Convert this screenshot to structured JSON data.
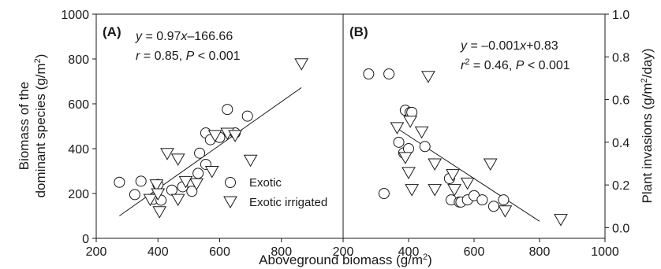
{
  "chart_data": [
    {
      "type": "scatter",
      "panel_label": "(A)",
      "ylabel_line1": "Biomass of the",
      "ylabel_line2": "dominant species (g/m",
      "ylabel_sup": "2",
      "ylabel_close": ")",
      "xlim": [
        200,
        1000
      ],
      "ylim": [
        0,
        1000
      ],
      "x_ticks": [
        200,
        400,
        600,
        800
      ],
      "y_ticks": [
        0,
        200,
        400,
        600,
        800,
        1000
      ],
      "annotation": {
        "eq_y": "y",
        "eq_rest": " = 0.97",
        "eq_x": "x",
        "eq_tail": "–166.66",
        "stat_r": "r",
        "stat_rest": " = 0.85,  ",
        "stat_p": "P",
        "stat_tail": " < 0.001"
      },
      "regression": {
        "slope": 0.97,
        "intercept": -166.66,
        "x_range": [
          275,
          865
        ]
      },
      "legend": {
        "exotic": "Exotic",
        "exotic_irrigated": "Exotic irrigated"
      },
      "series": [
        {
          "name": "Exotic",
          "marker": "circle",
          "points": [
            [
              275,
              250
            ],
            [
              325,
              195
            ],
            [
              345,
              255
            ],
            [
              385,
              175
            ],
            [
              400,
              240
            ],
            [
              410,
              170
            ],
            [
              445,
              215
            ],
            [
              480,
              230
            ],
            [
              510,
              210
            ],
            [
              530,
              290
            ],
            [
              535,
              380
            ],
            [
              555,
              470
            ],
            [
              555,
              330
            ],
            [
              570,
              440
            ],
            [
              600,
              450
            ],
            [
              625,
              575
            ],
            [
              650,
              470
            ],
            [
              690,
              545
            ]
          ]
        },
        {
          "name": "Exotic irrigated",
          "marker": "triangle-down",
          "points": [
            [
              375,
              175
            ],
            [
              395,
              240
            ],
            [
              400,
              200
            ],
            [
              405,
              120
            ],
            [
              430,
              380
            ],
            [
              465,
              175
            ],
            [
              465,
              355
            ],
            [
              490,
              255
            ],
            [
              525,
              245
            ],
            [
              575,
              300
            ],
            [
              585,
              460
            ],
            [
              625,
              470
            ],
            [
              650,
              460
            ],
            [
              700,
              350
            ],
            [
              865,
              780
            ]
          ]
        }
      ]
    },
    {
      "type": "scatter",
      "panel_label": "(B)",
      "ylabel_pre": "Plant invasions (g/m",
      "ylabel_sup": "2",
      "ylabel_post": "/day)",
      "xlabel_pre": "Aboveground biomass (g/m",
      "xlabel_sup": "2",
      "xlabel_post": ")",
      "xlim": [
        200,
        1000
      ],
      "ylim": [
        -0.05,
        1.0
      ],
      "x_ticks": [
        200,
        400,
        600,
        800,
        1000
      ],
      "y_ticks": [
        "0.0",
        "0.2",
        "0.4",
        "0.6",
        "0.8",
        "1.0"
      ],
      "annotation": {
        "eq_y": "y",
        "eq_rest": " = –0.001",
        "eq_x": "x",
        "eq_tail": "+0.83",
        "stat_r": "r",
        "stat_sup": "2",
        "stat_rest": " = 0.46, ",
        "stat_p": "P",
        "stat_tail": " < 0.001"
      },
      "regression": {
        "slope": -0.001,
        "intercept": 0.83,
        "x_range": [
          360,
          800
        ]
      },
      "series": [
        {
          "name": "Exotic",
          "marker": "circle",
          "points": [
            [
              278,
              0.72
            ],
            [
              325,
              0.16
            ],
            [
              340,
              0.72
            ],
            [
              370,
              0.4
            ],
            [
              385,
              0.35
            ],
            [
              390,
              0.55
            ],
            [
              400,
              0.37
            ],
            [
              405,
              0.54
            ],
            [
              410,
              0.54
            ],
            [
              450,
              0.38
            ],
            [
              525,
              0.23
            ],
            [
              530,
              0.13
            ],
            [
              555,
              0.12
            ],
            [
              560,
              0.12
            ],
            [
              580,
              0.13
            ],
            [
              600,
              0.15
            ],
            [
              625,
              0.13
            ],
            [
              660,
              0.1
            ],
            [
              690,
              0.13
            ]
          ]
        },
        {
          "name": "Exotic irrigated",
          "marker": "triangle-down",
          "points": [
            [
              365,
              0.47
            ],
            [
              390,
              0.33
            ],
            [
              400,
              0.26
            ],
            [
              405,
              0.5
            ],
            [
              410,
              0.18
            ],
            [
              440,
              0.45
            ],
            [
              460,
              0.71
            ],
            [
              480,
              0.3
            ],
            [
              480,
              0.18
            ],
            [
              535,
              0.25
            ],
            [
              540,
              0.18
            ],
            [
              580,
              0.21
            ],
            [
              650,
              0.3
            ],
            [
              695,
              0.08
            ],
            [
              865,
              0.04
            ]
          ]
        }
      ]
    }
  ]
}
